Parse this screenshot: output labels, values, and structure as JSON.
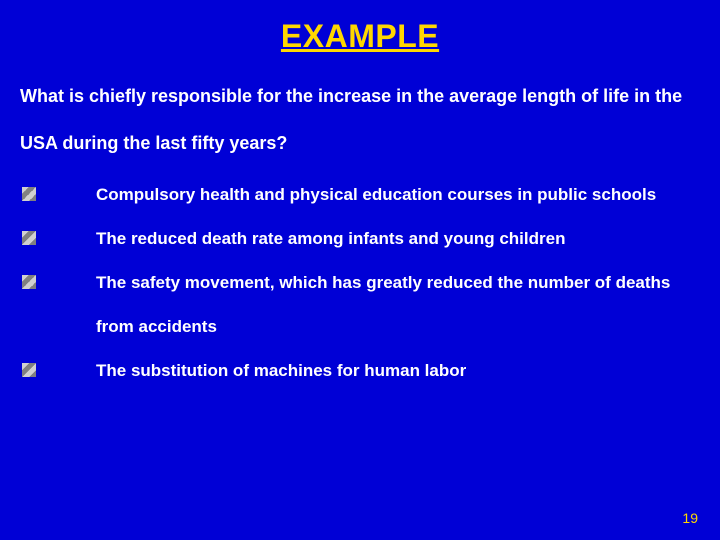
{
  "slide": {
    "background_color": "#0000d6",
    "accent_color": "#ffd700",
    "text_color": "#ffffff",
    "title": "EXAMPLE",
    "title_fontsize": 32,
    "question": "What is chiefly responsible for the increase in the average length of life in the USA during the last fifty years?",
    "question_fontsize": 18,
    "options": [
      "Compulsory health and physical education courses in public schools",
      "The reduced death rate among infants and young children",
      "The safety movement, which has greatly reduced the number of deaths from accidents",
      "The substitution of machines for human labor"
    ],
    "option_fontsize": 17,
    "bullet_colors": [
      "#d0d0d0",
      "#808080"
    ],
    "page_number": "19",
    "pagenum_fontsize": 14
  }
}
